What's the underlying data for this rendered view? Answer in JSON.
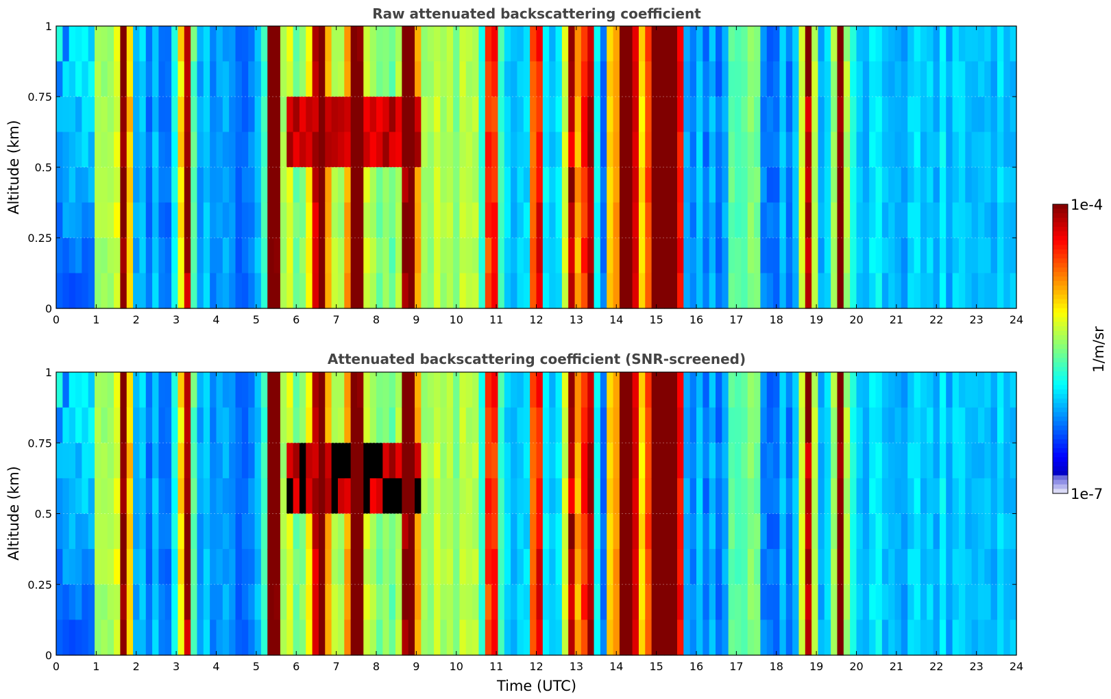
{
  "chart_data": [
    {
      "type": "heatmap",
      "title": "Raw attenuated backscattering coefficient",
      "xlabel": "",
      "ylabel": "Altitude (km)",
      "xlim": [
        0,
        24
      ],
      "ylim": [
        0,
        1
      ],
      "x_ticks": [
        "0",
        "1",
        "2",
        "3",
        "4",
        "5",
        "6",
        "7",
        "8",
        "9",
        "10",
        "11",
        "12",
        "13",
        "14",
        "15",
        "16",
        "17",
        "18",
        "19",
        "20",
        "21",
        "22",
        "23",
        "24"
      ],
      "y_ticks": [
        "0",
        "0.25",
        "0.5",
        "0.75",
        "1"
      ],
      "grid": true,
      "colorscale": "jet (log)",
      "approx_features": {
        "strong_columns_utc": [
          1.7,
          3.25,
          5.4,
          6.6,
          7.5,
          8.85,
          10.9,
          12.0,
          12.9,
          13.3,
          14.3,
          15.0,
          15.4,
          18.8,
          19.6
        ],
        "elevated_layer_km": [
          0.45,
          0.8
        ],
        "elevated_layer_utc": [
          5.8,
          9.2
        ]
      }
    },
    {
      "type": "heatmap",
      "title": "Attenuated backscattering coefficient (SNR-screened)",
      "xlabel": "Time (UTC)",
      "ylabel": "Altitude (km)",
      "xlim": [
        0,
        24
      ],
      "ylim": [
        0,
        1
      ],
      "x_ticks": [
        "0",
        "1",
        "2",
        "3",
        "4",
        "5",
        "6",
        "7",
        "8",
        "9",
        "10",
        "11",
        "12",
        "13",
        "14",
        "15",
        "16",
        "17",
        "18",
        "19",
        "20",
        "21",
        "22",
        "23",
        "24"
      ],
      "y_ticks": [
        "0",
        "0.25",
        "0.5",
        "0.75",
        "1"
      ],
      "grid": true,
      "colorscale": "jet (log)",
      "approx_features": {
        "strong_columns_utc": [
          1.7,
          3.25,
          5.4,
          6.6,
          7.5,
          8.85,
          10.9,
          12.0,
          12.9,
          13.3,
          14.3,
          15.0,
          15.4,
          18.8,
          19.6
        ],
        "masked_layer_km": [
          0.45,
          0.8
        ],
        "masked_layer_utc": [
          5.8,
          9.2
        ]
      }
    }
  ],
  "colorbar": {
    "max_label": "1e-4",
    "min_label": "1e-7",
    "unit_label": "1/m/sr",
    "range": [
      1e-07,
      0.0001
    ],
    "scale": "log"
  },
  "colors": {
    "low": "#00008f",
    "mid": "#eeee00",
    "high": "#800000",
    "masked": "#000000"
  }
}
